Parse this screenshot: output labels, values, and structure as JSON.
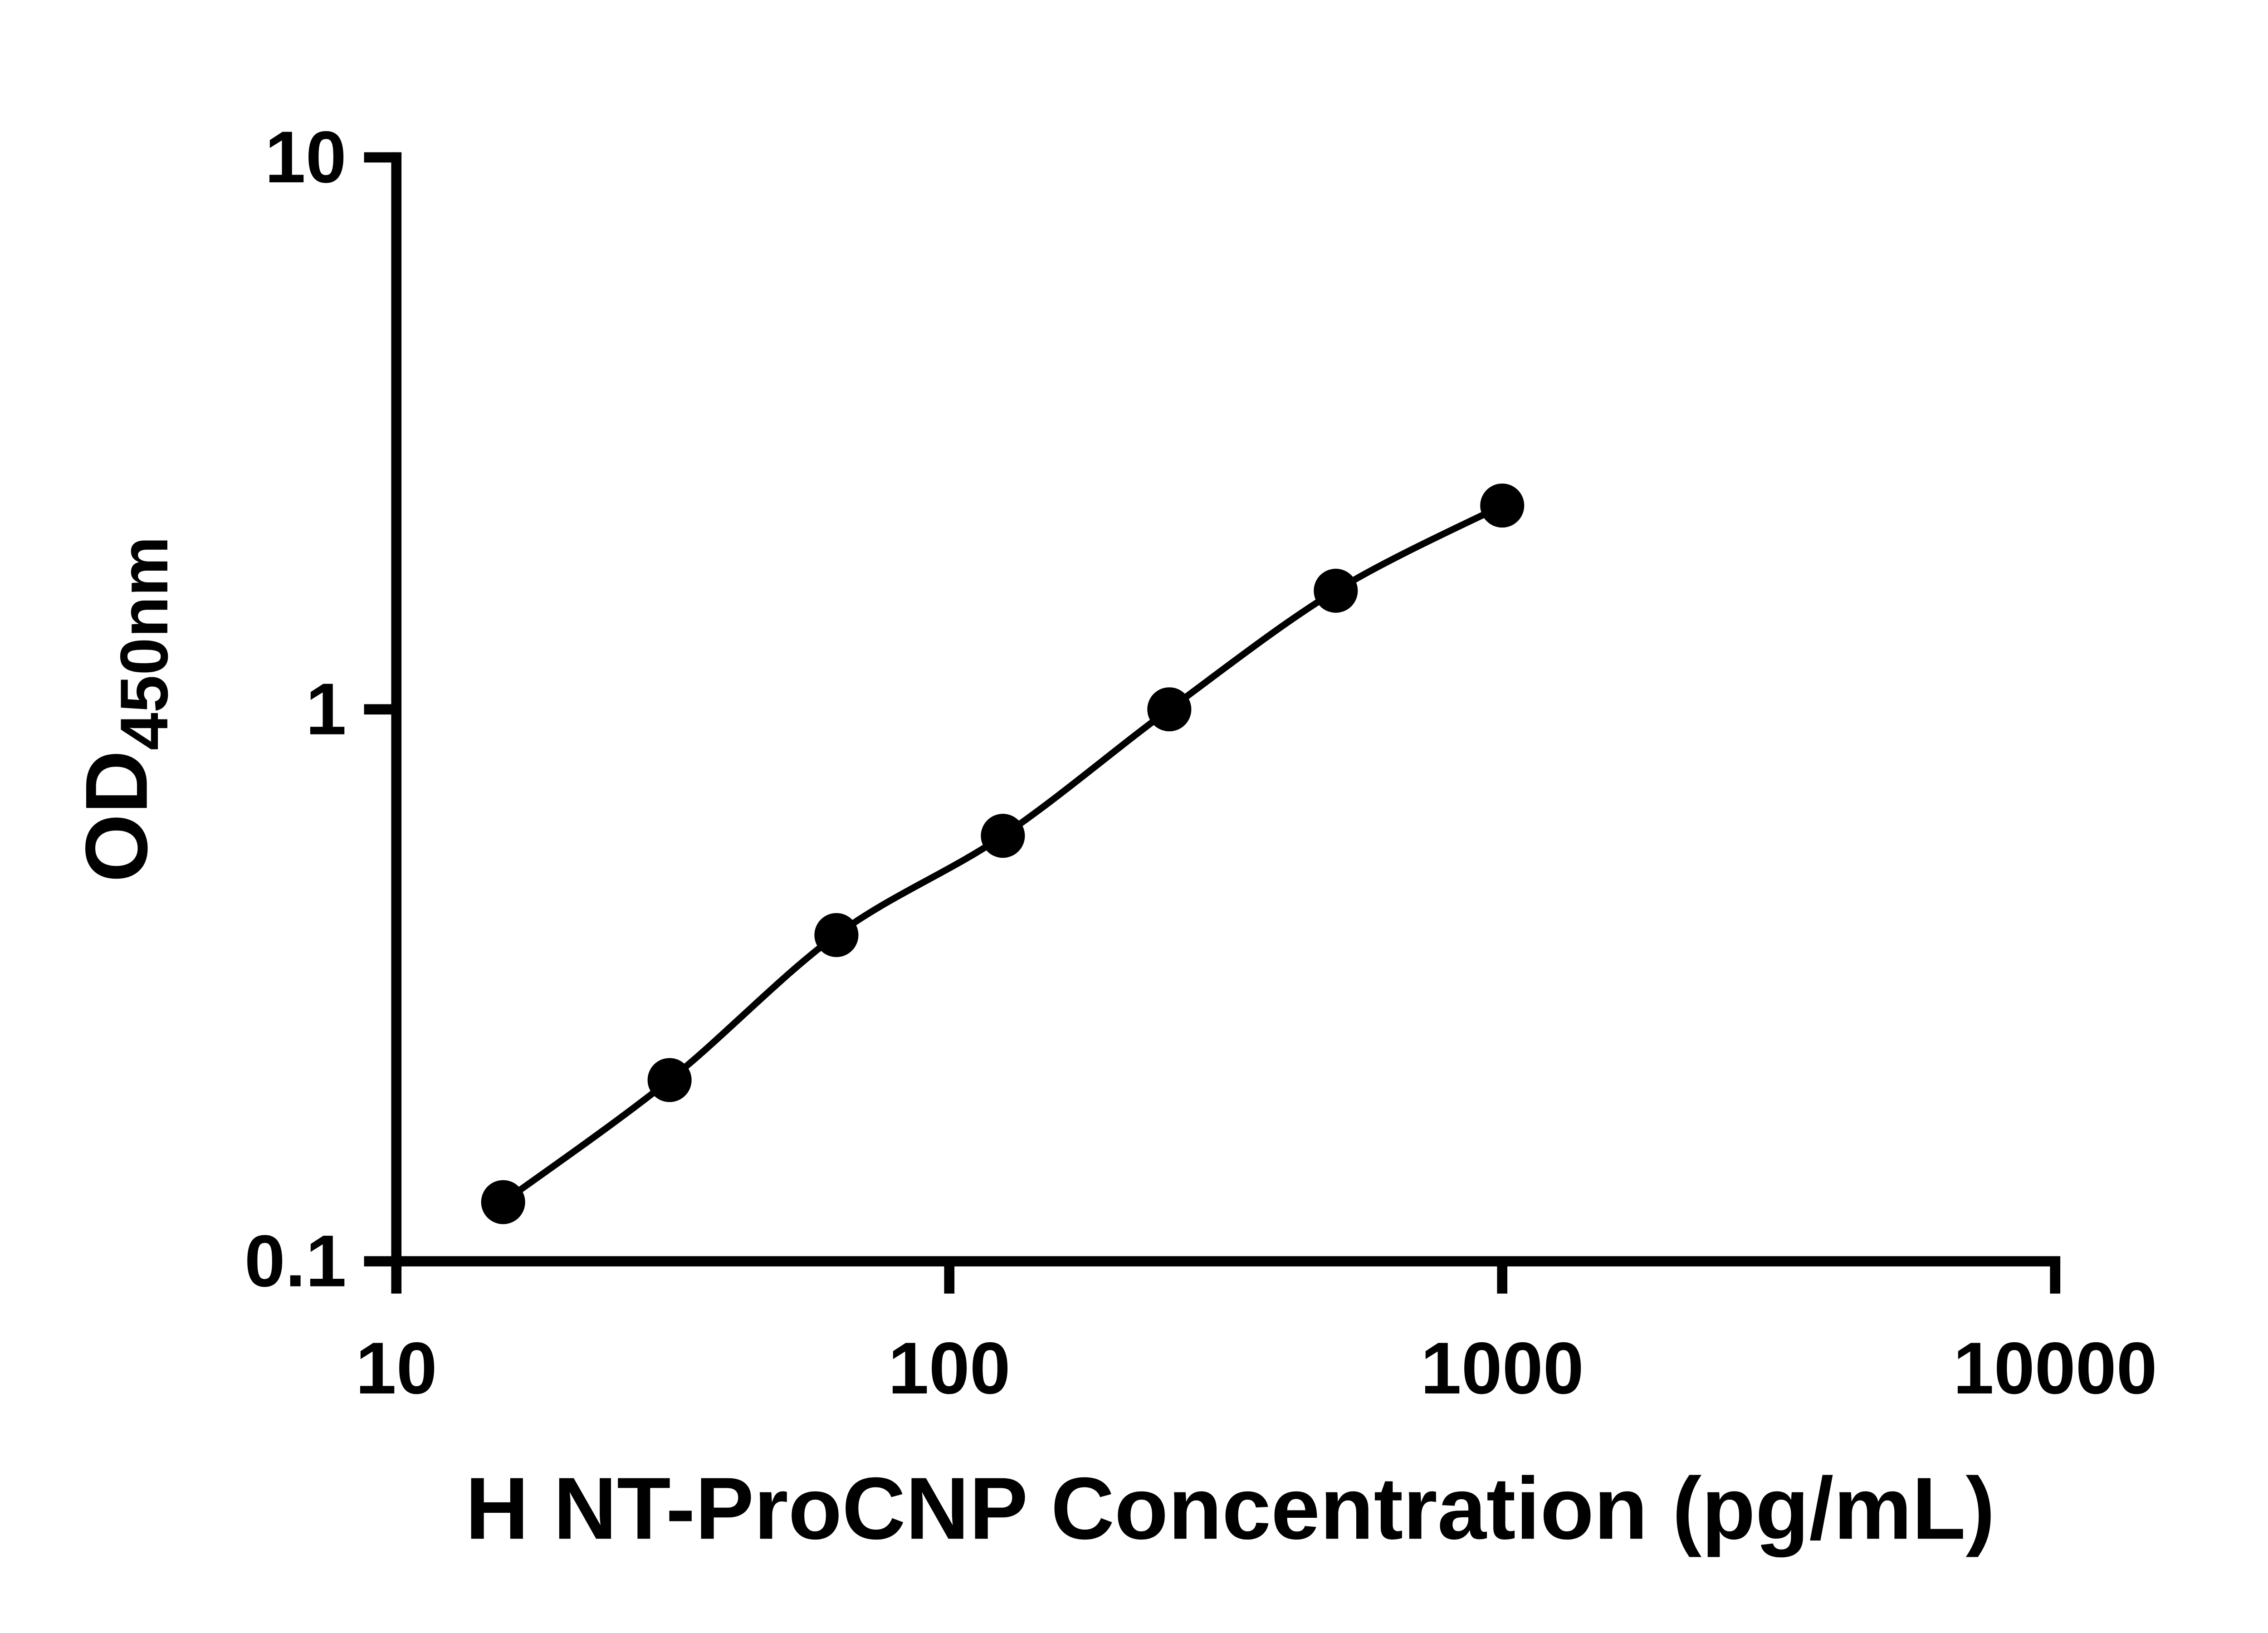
{
  "page": {
    "background": "#ffffff"
  },
  "chart": {
    "xlabel": "H NT-ProCNP Concentration (pg/mL)",
    "ylabel_main": "OD",
    "ylabel_sub": "450nm",
    "x_ticks": [
      10,
      100,
      1000,
      10000
    ],
    "x_tick_labels": [
      "10",
      "100",
      "1000",
      "10000"
    ],
    "y_ticks": [
      0.1,
      1,
      10
    ],
    "y_tick_labels": [
      "0.1",
      "1",
      "10"
    ],
    "colors": {
      "axis": "#000000",
      "line": "#000000",
      "marker": "#000000",
      "text": "#000000",
      "background": "#ffffff"
    }
  },
  "chart_data": {
    "type": "scatter",
    "subtype": "elisa-standard-curve",
    "x_scale": "log10",
    "y_scale": "log10",
    "xlim": [
      10,
      10000
    ],
    "ylim": [
      0.1,
      10
    ],
    "x": [
      15.6,
      31.2,
      62.5,
      125,
      250,
      500,
      1000
    ],
    "y": [
      0.128,
      0.213,
      0.39,
      0.59,
      1.0,
      1.64,
      2.34
    ],
    "title": "",
    "xlabel": "H NT-ProCNP Concentration (pg/mL)",
    "ylabel": "OD450nm",
    "grid": false,
    "legend_position": "none",
    "line": "smooth",
    "marker": "filled-circle",
    "marker_color": "#000000",
    "line_color": "#000000"
  }
}
